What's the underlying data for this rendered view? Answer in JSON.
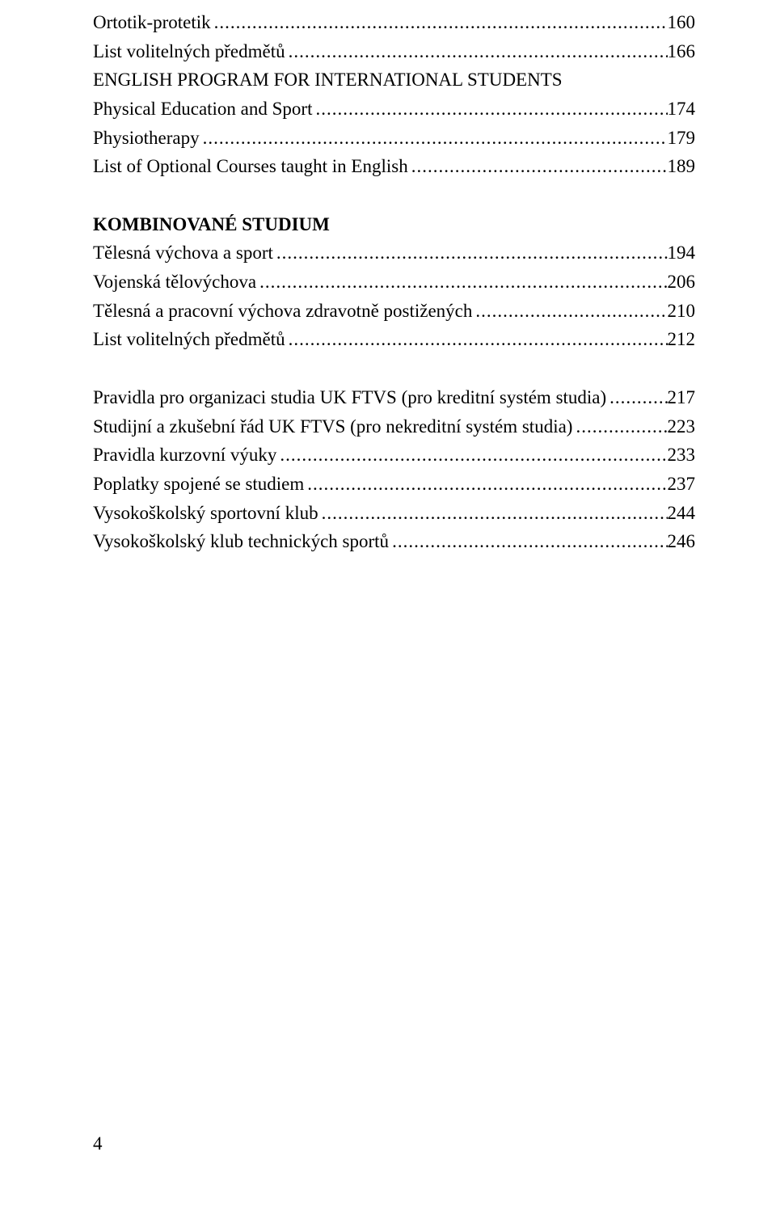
{
  "toc": {
    "items": [
      {
        "type": "entry",
        "label": "Ortotik-protetik",
        "page": "160"
      },
      {
        "type": "entry",
        "label": "List volitelných předmětů",
        "page": "166"
      },
      {
        "type": "heading",
        "label": "ENGLISH PROGRAM FOR INTERNATIONAL STUDENTS"
      },
      {
        "type": "entry",
        "label": "Physical Education and Sport",
        "page": "174"
      },
      {
        "type": "entry",
        "label": "Physiotherapy",
        "page": "179"
      },
      {
        "type": "entry",
        "label": "List of Optional Courses taught in English",
        "page": "189"
      },
      {
        "type": "blank"
      },
      {
        "type": "heading",
        "label": "KOMBINOVANÉ STUDIUM",
        "bold": true
      },
      {
        "type": "entry",
        "label": "Tělesná výchova a sport",
        "page": "194"
      },
      {
        "type": "entry",
        "label": "Vojenská tělovýchova",
        "page": "206"
      },
      {
        "type": "entry",
        "label": "Tělesná a pracovní výchova zdravotně postižených",
        "page": "210"
      },
      {
        "type": "entry",
        "label": "List volitelných předmětů",
        "page": "212"
      },
      {
        "type": "blank"
      },
      {
        "type": "entry",
        "label": "Pravidla pro organizaci studia UK FTVS (pro kreditní systém studia)",
        "page": "217"
      },
      {
        "type": "entry",
        "label": "Studijní a zkušební řád UK FTVS (pro nekreditní systém studia)",
        "page": "223"
      },
      {
        "type": "entry",
        "label": "Pravidla kurzovní výuky",
        "page": "233"
      },
      {
        "type": "entry",
        "label": "Poplatky spojené se studiem",
        "page": "237"
      },
      {
        "type": "entry",
        "label": "Vysokoškolský sportovní klub",
        "page": "244"
      },
      {
        "type": "entry",
        "label": "Vysokoškolský klub technických sportů",
        "page": "246"
      }
    ]
  },
  "page_number": "4",
  "style": {
    "font_family": "Times New Roman",
    "font_size_pt": 17,
    "text_color": "#000000",
    "background_color": "#ffffff"
  }
}
